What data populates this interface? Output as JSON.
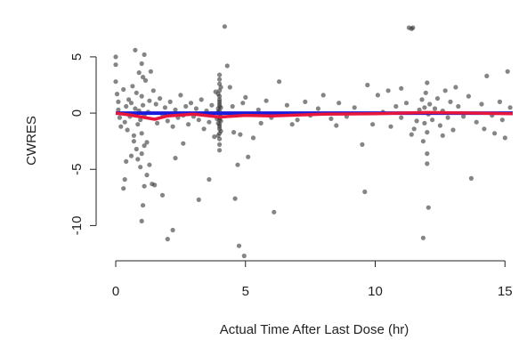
{
  "chart_data": {
    "type": "scatter",
    "title": "",
    "xlabel": "Actual Time After Last Dose (hr)",
    "ylabel": "CWRES",
    "xlim": [
      0,
      15.3
    ],
    "ylim": [
      -12.5,
      8
    ],
    "x_ticks": [
      0,
      5,
      10,
      15
    ],
    "x_tick_labels": [
      "0",
      "5",
      "10",
      "15"
    ],
    "y_ticks": [
      -10,
      -5,
      0,
      5
    ],
    "y_tick_labels": [
      "-10",
      "-5",
      "0",
      "5"
    ],
    "grid": false,
    "legend": "none",
    "colors": {
      "points": "#333333",
      "reference_line": "#1a1adb",
      "smooth_line": "#e8163a",
      "axis": "#222222"
    },
    "series": [
      {
        "type": "scatter",
        "points": [
          [
            0.0,
            5.0
          ],
          [
            0.0,
            4.3
          ],
          [
            0.0,
            2.8
          ],
          [
            0.05,
            1.7
          ],
          [
            0.1,
            1.0
          ],
          [
            0.15,
            -0.4
          ],
          [
            0.2,
            -1.2
          ],
          [
            0.1,
            0.3
          ],
          [
            0.3,
            2.1
          ],
          [
            0.35,
            -0.8
          ],
          [
            0.4,
            0.6
          ],
          [
            0.45,
            -1.5
          ],
          [
            0.5,
            1.2
          ],
          [
            0.55,
            -0.3
          ],
          [
            0.6,
            0.9
          ],
          [
            0.65,
            2.4
          ],
          [
            0.7,
            -2.0
          ],
          [
            0.75,
            0.4
          ],
          [
            0.8,
            1.8
          ],
          [
            0.85,
            -1.0
          ],
          [
            0.9,
            0.2
          ],
          [
            0.95,
            -0.6
          ],
          [
            1.0,
            1.5
          ],
          [
            1.0,
            -1.8
          ],
          [
            1.05,
            0.7
          ],
          [
            1.1,
            -0.2
          ],
          [
            1.15,
            2.9
          ],
          [
            1.2,
            -2.6
          ],
          [
            1.25,
            0.1
          ],
          [
            1.3,
            1.1
          ],
          [
            0.8,
            -3.2
          ],
          [
            0.85,
            -4.1
          ],
          [
            0.95,
            -4.8
          ],
          [
            1.0,
            -3.6
          ],
          [
            1.1,
            -2.9
          ],
          [
            0.9,
            3.6
          ],
          [
            1.0,
            4.4
          ],
          [
            1.05,
            3.2
          ],
          [
            1.1,
            5.2
          ],
          [
            0.75,
            5.6
          ],
          [
            0.4,
            -4.3
          ],
          [
            0.35,
            -5.9
          ],
          [
            0.3,
            -6.7
          ],
          [
            1.0,
            -9.6
          ],
          [
            1.05,
            -8.2
          ],
          [
            1.1,
            -6.5
          ],
          [
            1.2,
            -5.5
          ],
          [
            1.3,
            -4.6
          ],
          [
            1.4,
            -6.3
          ],
          [
            1.5,
            -6.4
          ],
          [
            0.6,
            -3.8
          ],
          [
            0.7,
            -2.5
          ],
          [
            1.35,
            3.7
          ],
          [
            1.45,
            2.0
          ],
          [
            1.55,
            0.8
          ],
          [
            1.6,
            -0.9
          ],
          [
            1.7,
            1.3
          ],
          [
            1.8,
            -0.1
          ],
          [
            1.9,
            0.5
          ],
          [
            2.0,
            -0.7
          ],
          [
            2.1,
            1.0
          ],
          [
            2.2,
            -1.2
          ],
          [
            2.3,
            0.3
          ],
          [
            2.4,
            -0.4
          ],
          [
            2.5,
            1.6
          ],
          [
            2.6,
            -0.2
          ],
          [
            2.7,
            0.6
          ],
          [
            2.8,
            -1.0
          ],
          [
            2.9,
            0.9
          ],
          [
            3.0,
            -0.3
          ],
          [
            3.1,
            0.4
          ],
          [
            3.2,
            -0.6
          ],
          [
            3.3,
            1.2
          ],
          [
            3.4,
            -1.4
          ],
          [
            3.5,
            0.2
          ],
          [
            3.6,
            -0.8
          ],
          [
            3.7,
            0.7
          ],
          [
            3.8,
            -2.1
          ],
          [
            3.85,
            1.9
          ],
          [
            3.9,
            -0.5
          ],
          [
            2.0,
            -11.2
          ],
          [
            2.2,
            -10.4
          ],
          [
            1.8,
            -7.3
          ],
          [
            2.3,
            -4.0
          ],
          [
            3.2,
            -7.7
          ],
          [
            3.6,
            -5.9
          ],
          [
            2.6,
            -2.7
          ],
          [
            4.0,
            3.4
          ],
          [
            4.0,
            2.6
          ],
          [
            4.0,
            2.0
          ],
          [
            4.0,
            1.5
          ],
          [
            4.0,
            1.0
          ],
          [
            4.0,
            0.6
          ],
          [
            4.0,
            0.2
          ],
          [
            4.0,
            -0.2
          ],
          [
            4.0,
            -0.6
          ],
          [
            4.0,
            -1.0
          ],
          [
            4.0,
            -1.4
          ],
          [
            4.0,
            -1.8
          ],
          [
            4.0,
            -2.3
          ],
          [
            4.0,
            -2.8
          ],
          [
            4.0,
            -3.3
          ],
          [
            4.0,
            -0.4
          ],
          [
            4.0,
            0.8
          ],
          [
            4.0,
            1.2
          ],
          [
            4.0,
            -1.2
          ],
          [
            4.0,
            3.0
          ],
          [
            3.95,
            0.1
          ],
          [
            4.05,
            -0.3
          ],
          [
            3.95,
            1.7
          ],
          [
            4.05,
            -1.6
          ],
          [
            3.95,
            -0.9
          ],
          [
            4.05,
            0.5
          ],
          [
            3.95,
            -2.0
          ],
          [
            4.05,
            2.3
          ],
          [
            3.95,
            0.4
          ],
          [
            4.05,
            -0.7
          ],
          [
            4.2,
            7.7
          ],
          [
            4.3,
            4.2
          ],
          [
            4.4,
            2.3
          ],
          [
            4.5,
            0.6
          ],
          [
            4.55,
            -1.7
          ],
          [
            4.6,
            -7.6
          ],
          [
            4.7,
            -4.6
          ],
          [
            4.8,
            -1.9
          ],
          [
            4.9,
            0.9
          ],
          [
            5.0,
            1.4
          ],
          [
            4.75,
            -11.8
          ],
          [
            4.95,
            -12.7
          ],
          [
            5.1,
            -3.9
          ],
          [
            5.3,
            -2.2
          ],
          [
            5.5,
            0.3
          ],
          [
            5.6,
            -0.9
          ],
          [
            5.8,
            1.1
          ],
          [
            6.0,
            -0.4
          ],
          [
            6.3,
            2.8
          ],
          [
            6.1,
            -8.8
          ],
          [
            6.6,
            0.7
          ],
          [
            7.0,
            -0.6
          ],
          [
            7.3,
            1.0
          ],
          [
            7.5,
            -0.2
          ],
          [
            7.8,
            0.4
          ],
          [
            8.0,
            1.6
          ],
          [
            8.3,
            -0.5
          ],
          [
            8.6,
            0.9
          ],
          [
            8.9,
            -0.3
          ],
          [
            9.2,
            0.5
          ],
          [
            9.5,
            -2.8
          ],
          [
            9.7,
            2.5
          ],
          [
            9.9,
            -1.0
          ],
          [
            9.6,
            -7.0
          ],
          [
            10.1,
            1.6
          ],
          [
            10.3,
            0.1
          ],
          [
            10.6,
            -1.2
          ],
          [
            10.8,
            0.6
          ],
          [
            11.0,
            -0.4
          ],
          [
            11.2,
            0.9
          ],
          [
            11.0,
            2.2
          ],
          [
            11.3,
            7.6
          ],
          [
            11.4,
            7.5
          ],
          [
            11.45,
            7.6
          ],
          [
            11.5,
            -1.4
          ],
          [
            11.6,
            -0.7
          ],
          [
            11.7,
            0.3
          ],
          [
            11.8,
            1.2
          ],
          [
            11.85,
            -2.5
          ],
          [
            11.9,
            -0.9
          ],
          [
            11.9,
            0.5
          ],
          [
            11.95,
            1.8
          ],
          [
            12.0,
            -1.7
          ],
          [
            12.0,
            -3.6
          ],
          [
            12.0,
            2.7
          ],
          [
            12.05,
            -0.1
          ],
          [
            12.1,
            0.8
          ],
          [
            12.0,
            -4.5
          ],
          [
            12.05,
            -8.4
          ],
          [
            11.85,
            -11.1
          ],
          [
            12.2,
            -0.6
          ],
          [
            12.3,
            0.4
          ],
          [
            12.4,
            1.3
          ],
          [
            12.5,
            -1.1
          ],
          [
            12.6,
            0.2
          ],
          [
            12.7,
            2.0
          ],
          [
            12.8,
            -0.4
          ],
          [
            12.9,
            1.0
          ],
          [
            13.0,
            -1.5
          ],
          [
            13.2,
            0.6
          ],
          [
            13.4,
            -0.3
          ],
          [
            13.6,
            1.5
          ],
          [
            13.7,
            -5.8
          ],
          [
            13.9,
            -0.8
          ],
          [
            14.1,
            0.8
          ],
          [
            14.3,
            3.3
          ],
          [
            14.5,
            -0.2
          ],
          [
            14.6,
            -1.8
          ],
          [
            14.8,
            1.0
          ],
          [
            15.0,
            -2.2
          ],
          [
            15.1,
            3.7
          ],
          [
            15.2,
            0.5
          ],
          [
            14.9,
            -0.6
          ],
          [
            14.2,
            -1.4
          ],
          [
            13.1,
            2.3
          ],
          [
            12.6,
            -2.0
          ],
          [
            11.4,
            -1.9
          ],
          [
            10.5,
            2.0
          ],
          [
            8.5,
            -1.1
          ],
          [
            6.8,
            -1.0
          ]
        ]
      },
      {
        "type": "line",
        "role": "reference",
        "x": [
          0,
          15.3
        ],
        "y": [
          0,
          0
        ]
      },
      {
        "type": "line",
        "role": "smooth",
        "x": [
          0,
          0.5,
          1.0,
          1.5,
          2.0,
          3.0,
          4.0,
          5.0,
          6.0,
          8.0,
          10.0,
          12.0,
          14.0,
          15.3
        ],
        "y": [
          0.0,
          -0.15,
          -0.35,
          -0.55,
          -0.25,
          -0.1,
          -0.35,
          -0.2,
          -0.25,
          -0.1,
          -0.05,
          0.05,
          0.0,
          -0.05
        ]
      }
    ]
  }
}
